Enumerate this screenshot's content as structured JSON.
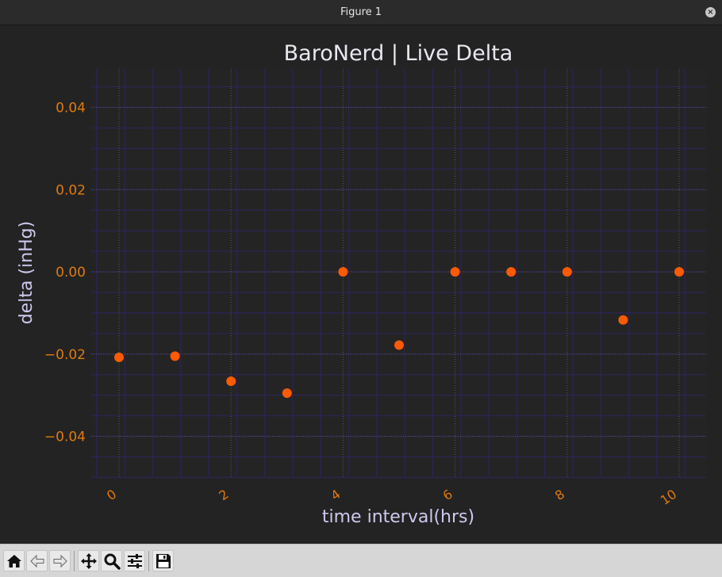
{
  "window": {
    "title": "Figure 1"
  },
  "toolbar": {
    "buttons": [
      {
        "name": "home-button",
        "icon": "home-icon"
      },
      {
        "name": "back-button",
        "icon": "arrow-left-icon"
      },
      {
        "name": "forward-button",
        "icon": "arrow-right-icon"
      },
      {
        "name": "pan-button",
        "icon": "move-icon"
      },
      {
        "name": "zoom-button",
        "icon": "magnifier-icon"
      },
      {
        "name": "configure-subplots-button",
        "icon": "sliders-icon"
      },
      {
        "name": "save-button",
        "icon": "floppy-disk-icon"
      }
    ]
  },
  "colors": {
    "figure_bg": "#232323",
    "axes_bg": "#242424",
    "title": "#e8e8f0",
    "axis_label": "#d0c8ee",
    "tick_label": "#e07a10",
    "marker": "#ff5a00",
    "grid_major": "#555555",
    "grid_minor": "#2a2550"
  },
  "chart_data": {
    "type": "scatter",
    "title": "BaroNerd | Live Delta",
    "xlabel": "time interval(hrs)",
    "ylabel": "delta (inHg)",
    "x": [
      0,
      1,
      2,
      3,
      4,
      5,
      6,
      7,
      8,
      9,
      10
    ],
    "y": [
      -0.0208,
      -0.0205,
      -0.0266,
      -0.0295,
      0.0,
      -0.0178,
      0.0,
      0.0,
      0.0,
      -0.0117,
      0.0
    ],
    "xlim": [
      -0.4,
      10.5
    ],
    "ylim": [
      -0.05,
      0.05
    ],
    "xticks": [
      0,
      2,
      4,
      6,
      8,
      10
    ],
    "xtick_labels": [
      "0",
      "2",
      "4",
      "6",
      "8",
      "10"
    ],
    "xtick_rotation": "diagonal",
    "yticks": [
      -0.04,
      -0.02,
      0.0,
      0.02,
      0.04
    ],
    "ytick_labels": [
      "−0.04",
      "−0.02",
      "0.00",
      "0.02",
      "0.04"
    ],
    "grid": true,
    "minor_grid": true,
    "legend": "none"
  }
}
